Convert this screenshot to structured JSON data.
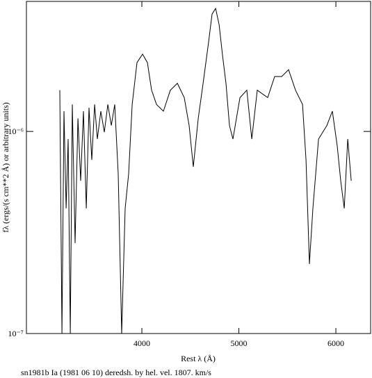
{
  "chart_data": {
    "type": "line",
    "title": "sn1981b Ia (1981 06 10) deredsh. by hel. vel.  1807. km/s",
    "x_label": "Rest λ (Å)",
    "y_label": "fλ (ergs/(s cm**2 Å) or arbitrary units)",
    "x": [
      3154,
      3176,
      3197,
      3219,
      3240,
      3262,
      3283,
      3312,
      3341,
      3369,
      3398,
      3427,
      3455,
      3484,
      3513,
      3541,
      3577,
      3613,
      3649,
      3685,
      3720,
      3756,
      3792,
      3828,
      3864,
      3900,
      3950,
      4007,
      4057,
      4100,
      4151,
      4222,
      4294,
      4366,
      4437,
      4487,
      4530,
      4581,
      4631,
      4688,
      4724,
      4760,
      4796,
      4832,
      4867,
      4903,
      4939,
      5011,
      5082,
      5133,
      5190,
      5297,
      5369,
      5441,
      5512,
      5584,
      5656,
      5692,
      5727,
      5763,
      5821,
      5907,
      5964,
      6014,
      6050,
      6086,
      6122,
      6158
    ],
    "values": [
      1.6e-06,
      1e-07,
      1.26e-06,
      4.16e-07,
      9.17e-07,
      1e-07,
      1.36e-06,
      2.8e-07,
      1.16e-06,
      5.7e-07,
      1.26e-06,
      4.16e-07,
      1.31e-06,
      7.23e-07,
      1.36e-06,
      9.17e-07,
      1.26e-06,
      9.92e-07,
      1.36e-06,
      1.07e-06,
      1.36e-06,
      6.17e-07,
      1e-07,
      4.16e-07,
      6.17e-07,
      1.36e-06,
      2.19e-06,
      2.41e-06,
      2.19e-06,
      1.6e-06,
      1.36e-06,
      1.26e-06,
      1.6e-06,
      1.73e-06,
      1.47e-06,
      1.07e-06,
      6.68e-07,
      1.16e-06,
      1.73e-06,
      2.77e-06,
      3.81e-06,
      4.06e-06,
      3.38e-06,
      2.37e-06,
      1.73e-06,
      1.07e-06,
      9.17e-07,
      1.47e-06,
      1.6e-06,
      9.17e-07,
      1.6e-06,
      1.47e-06,
      1.87e-06,
      1.87e-06,
      2.02e-06,
      1.6e-06,
      1.36e-06,
      7.23e-07,
      2.21e-07,
      4.16e-07,
      9.17e-07,
      1.07e-06,
      1.26e-06,
      8.47e-07,
      5.7e-07,
      4.16e-07,
      9.17e-07,
      5.7e-07
    ],
    "color": "#000000",
    "xlim": [
      2810,
      6358
    ],
    "xticks": [
      4000,
      5000,
      6000
    ],
    "ylim": [
      1e-07,
      4.4e-06
    ],
    "yticks": [
      {
        "value": 1e-07,
        "label": "10⁻⁷"
      },
      {
        "value": 1e-06,
        "label": "10⁻⁶"
      }
    ],
    "ylog": true
  }
}
